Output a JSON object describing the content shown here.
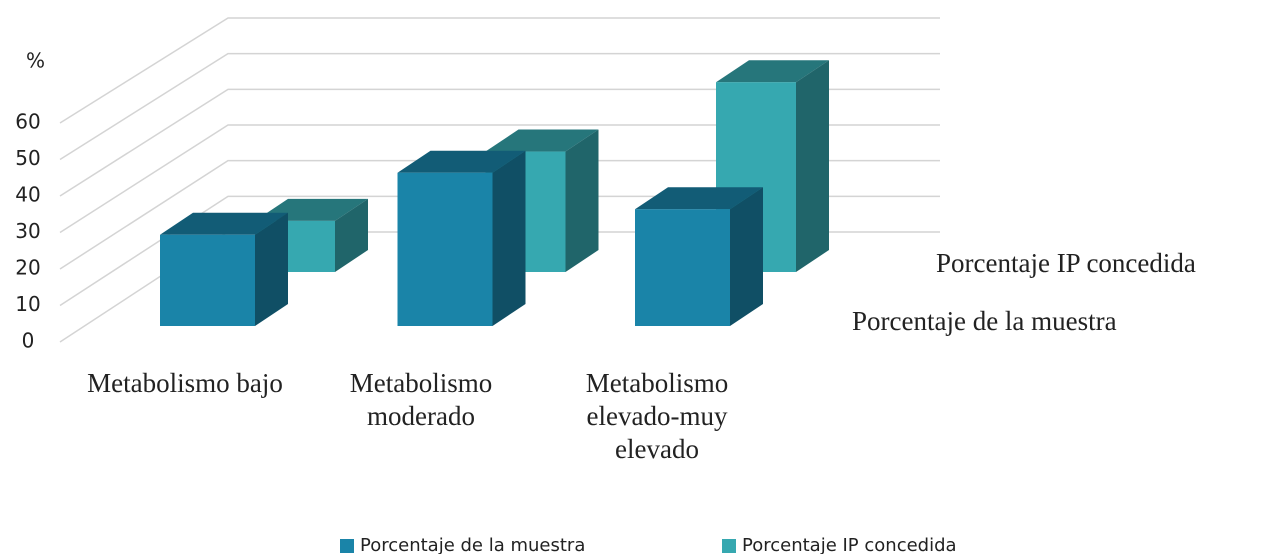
{
  "chart_data": {
    "type": "bar3d",
    "y_label": "%",
    "categories": [
      "Metabolismo bajo",
      "Metabolismo moderado",
      "Metabolismo elevado-muy elevado"
    ],
    "series": [
      {
        "name": "Porcentaje de la muestra",
        "color": "#1a84a8",
        "values": [
          25,
          42,
          32
        ]
      },
      {
        "name": "Porcentaje IP concedida",
        "color": "#36a8b0",
        "values": [
          14,
          33,
          52
        ]
      }
    ],
    "ylim": [
      0,
      60
    ],
    "yticks": [
      0,
      10,
      20,
      30,
      40,
      50,
      60
    ],
    "grid": true,
    "legend": "bottom"
  }
}
